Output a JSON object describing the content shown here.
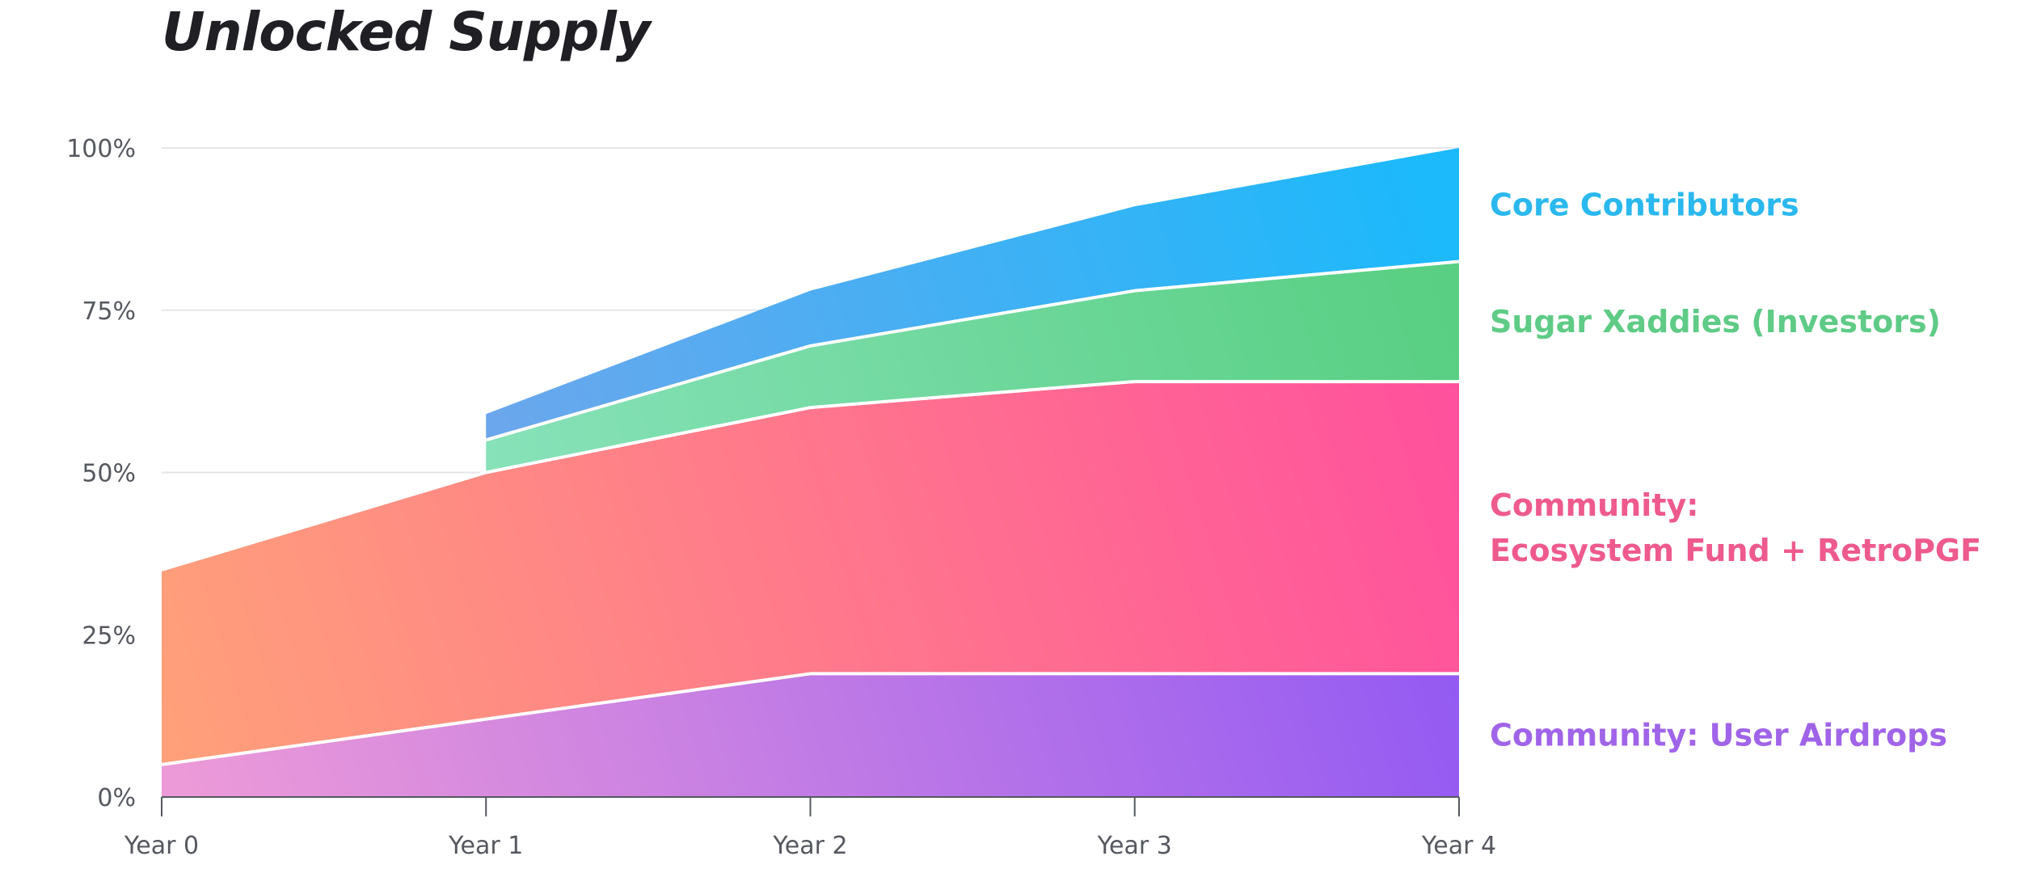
{
  "chart_data": {
    "type": "area",
    "stacked": true,
    "title": "Unlocked Supply",
    "xlabel": "",
    "ylabel": "",
    "categories": [
      "Year 0",
      "Year 1",
      "Year 2",
      "Year 3",
      "Year 4"
    ],
    "y_ticks": [
      "0%",
      "25%",
      "50%",
      "75%",
      "100%"
    ],
    "ylim": [
      0,
      100
    ],
    "grid": true,
    "legend_placement": "right",
    "series": [
      {
        "name": "Community: User Airdrops",
        "label_lines": [
          "Community: User Airdrops"
        ],
        "color": "#a064e8",
        "gradient": [
          "#ec9ad8",
          "#8c55f5"
        ],
        "values": [
          5,
          12,
          19,
          19,
          19
        ]
      },
      {
        "name": "Community: Ecosystem Fund + RetroPGF",
        "label_lines": [
          "Community:",
          "Ecosystem Fund + RetroPGF"
        ],
        "color": "#ee5a8e",
        "gradient": [
          "#ffa07a",
          "#ff4f9e"
        ],
        "values": [
          30,
          38,
          41,
          45,
          45
        ]
      },
      {
        "name": "Sugar Xaddies (Investors)",
        "label_lines": [
          "Sugar Xaddies (Investors)"
        ],
        "color": "#5fcb86",
        "gradient": [
          "#9ae9cf",
          "#58cf82"
        ],
        "values": [
          null,
          5,
          9.5,
          14,
          18.5
        ]
      },
      {
        "name": "Core Contributors",
        "label_lines": [
          "Core Contributors"
        ],
        "color": "#2ab8ee",
        "gradient": [
          "#8c9fe6",
          "#1cb9fb"
        ],
        "values": [
          null,
          4,
          8.5,
          13,
          17.5
        ]
      }
    ],
    "cumulative_totals": [
      35,
      59,
      78,
      91,
      100
    ]
  }
}
